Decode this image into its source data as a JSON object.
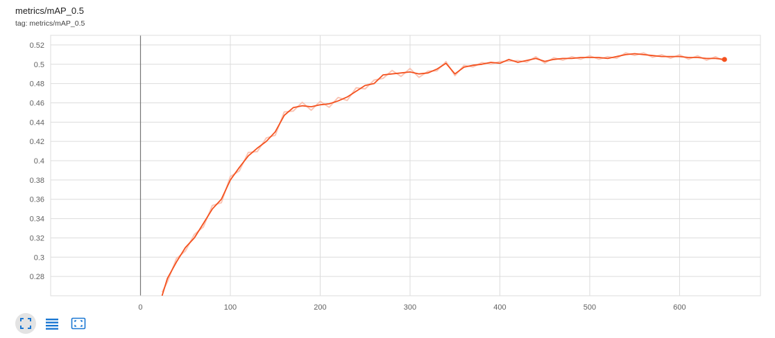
{
  "header": {
    "title": "metrics/mAP_0.5",
    "tag": "tag: metrics/mAP_0.5"
  },
  "toolbar": {
    "buttons": [
      {
        "icon": "fit-domain-icon",
        "active": true
      },
      {
        "icon": "toggle-y-log-icon",
        "active": false
      },
      {
        "icon": "expand-chart-icon",
        "active": false
      }
    ]
  },
  "colors": {
    "series": "#f4511e",
    "series_raw": "#f9b7a2",
    "grid": "#dcdcdc",
    "zero_line": "#757575"
  },
  "chart_data": {
    "type": "line",
    "title": "metrics/mAP_0.5",
    "xlim": [
      -100,
      690
    ],
    "ylim": [
      0.26,
      0.53
    ],
    "x_ticks": [
      0,
      100,
      200,
      300,
      400,
      500,
      600
    ],
    "y_ticks": [
      0.28,
      0.3,
      0.32,
      0.34,
      0.36,
      0.38,
      0.4,
      0.42,
      0.44,
      0.46,
      0.48,
      0.5,
      0.52
    ],
    "y_tick_labels": [
      "0.28",
      "0.3",
      "0.32",
      "0.34",
      "0.36",
      "0.38",
      "0.4",
      "0.42",
      "0.44",
      "0.46",
      "0.48",
      "0.5",
      "0.52"
    ],
    "grid": true,
    "series": [
      {
        "x": [
          24,
          30,
          40,
          50,
          60,
          70,
          80,
          90,
          100,
          110,
          120,
          130,
          140,
          150,
          160,
          170,
          180,
          190,
          200,
          210,
          220,
          230,
          240,
          250,
          260,
          270,
          280,
          290,
          300,
          310,
          320,
          330,
          340,
          350,
          360,
          370,
          380,
          390,
          400,
          410,
          420,
          430,
          440,
          450,
          460,
          470,
          480,
          490,
          500,
          510,
          520,
          530,
          540,
          550,
          560,
          570,
          580,
          590,
          600,
          610,
          620,
          630,
          640,
          650
        ],
        "y": [
          0.26,
          0.278,
          0.295,
          0.31,
          0.32,
          0.335,
          0.35,
          0.36,
          0.38,
          0.393,
          0.405,
          0.413,
          0.42,
          0.43,
          0.447,
          0.455,
          0.457,
          0.456,
          0.458,
          0.459,
          0.462,
          0.466,
          0.472,
          0.478,
          0.48,
          0.489,
          0.49,
          0.491,
          0.492,
          0.49,
          0.491,
          0.495,
          0.501,
          0.49,
          0.497,
          0.499,
          0.5,
          0.502,
          0.501,
          0.505,
          0.502,
          0.504,
          0.506,
          0.503,
          0.505,
          0.506,
          0.506,
          0.507,
          0.507,
          0.507,
          0.506,
          0.508,
          0.51,
          0.511,
          0.51,
          0.509,
          0.508,
          0.508,
          0.508,
          0.507,
          0.507,
          0.506,
          0.506,
          0.505
        ]
      }
    ]
  }
}
